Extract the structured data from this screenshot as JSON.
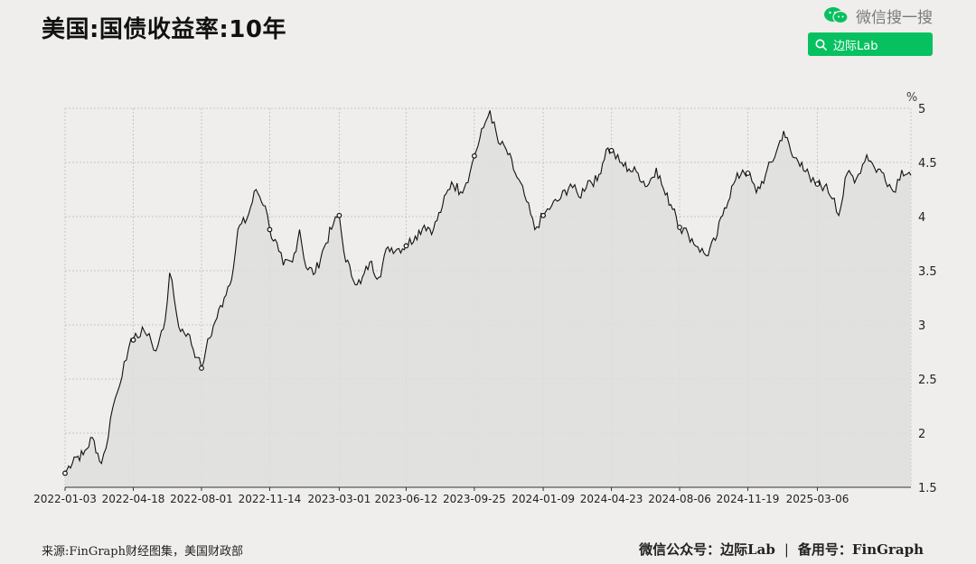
{
  "title": "美国:国债收益率:10年",
  "wechat": {
    "search_text": "微信搜一搜",
    "button_label": "边际Lab",
    "brand_color": "#07c160"
  },
  "footer": {
    "source": "来源:FinGraph财经图集，美国财政部",
    "account_label": "微信公众号：边际Lab",
    "separator": "|",
    "backup_label": "备用号：FinGraph"
  },
  "chart_data": {
    "type": "area",
    "title": "美国:国债收益率:10年",
    "ylabel": "%",
    "y_axis_side": "right",
    "ylim": [
      1.5,
      5
    ],
    "yticks": [
      "1.5",
      "2",
      "2.5",
      "3",
      "3.5",
      "4",
      "4.5",
      "5"
    ],
    "xticks": [
      "2022-01-03",
      "2022-04-18",
      "2022-08-01",
      "2022-11-14",
      "2023-03-01",
      "2023-06-12",
      "2023-09-25",
      "2024-01-09",
      "2024-04-23",
      "2024-08-06",
      "2024-11-19",
      "2025-03-06"
    ],
    "grid": true,
    "line_color": "#111111",
    "fill_color": "#dedede",
    "series": [
      {
        "x": [
          "2022-01-03",
          "2022-01-17",
          "2022-01-31",
          "2022-02-14",
          "2022-02-28",
          "2022-03-07",
          "2022-03-14",
          "2022-03-21",
          "2022-03-28",
          "2022-04-04",
          "2022-04-11",
          "2022-04-18",
          "2022-04-25",
          "2022-05-02",
          "2022-05-09",
          "2022-05-16",
          "2022-05-23",
          "2022-06-06",
          "2022-06-13",
          "2022-06-20",
          "2022-06-27",
          "2022-07-11",
          "2022-07-25",
          "2022-08-01",
          "2022-08-08",
          "2022-08-22",
          "2022-09-05",
          "2022-09-19",
          "2022-09-26",
          "2022-10-10",
          "2022-10-24",
          "2022-11-07",
          "2022-11-14",
          "2022-11-28",
          "2022-12-05",
          "2022-12-19",
          "2022-12-30",
          "2023-01-09",
          "2023-01-23",
          "2023-02-06",
          "2023-02-20",
          "2023-03-01",
          "2023-03-08",
          "2023-03-20",
          "2023-04-03",
          "2023-04-17",
          "2023-05-01",
          "2023-05-15",
          "2023-05-29",
          "2023-06-12",
          "2023-06-26",
          "2023-07-10",
          "2023-07-24",
          "2023-08-07",
          "2023-08-21",
          "2023-09-04",
          "2023-09-18",
          "2023-09-25",
          "2023-10-09",
          "2023-10-19",
          "2023-11-01",
          "2023-11-13",
          "2023-11-27",
          "2023-12-11",
          "2023-12-27",
          "2024-01-09",
          "2024-01-22",
          "2024-02-05",
          "2024-02-20",
          "2024-03-04",
          "2024-03-18",
          "2024-04-01",
          "2024-04-15",
          "2024-04-23",
          "2024-05-06",
          "2024-05-20",
          "2024-06-03",
          "2024-06-17",
          "2024-07-01",
          "2024-07-15",
          "2024-07-29",
          "2024-08-06",
          "2024-08-19",
          "2024-09-03",
          "2024-09-16",
          "2024-09-30",
          "2024-10-14",
          "2024-10-28",
          "2024-11-11",
          "2024-11-19",
          "2024-12-02",
          "2024-12-16",
          "2025-01-02",
          "2025-01-13",
          "2025-01-27",
          "2025-02-10",
          "2025-02-24",
          "2025-03-06",
          "2025-03-17",
          "2025-04-01",
          "2025-04-08",
          "2025-04-21",
          "2025-05-05",
          "2025-05-21",
          "2025-06-02",
          "2025-06-16",
          "2025-07-01",
          "2025-07-14",
          "2025-07-28"
        ],
        "y": [
          1.63,
          1.78,
          1.8,
          1.96,
          1.72,
          1.86,
          2.14,
          2.32,
          2.44,
          2.66,
          2.79,
          2.86,
          2.88,
          2.98,
          2.9,
          2.84,
          2.76,
          3.04,
          3.48,
          3.24,
          2.98,
          2.92,
          2.7,
          2.6,
          2.78,
          3.03,
          3.25,
          3.52,
          3.88,
          3.98,
          4.25,
          4.1,
          3.88,
          3.68,
          3.55,
          3.58,
          3.88,
          3.53,
          3.48,
          3.72,
          3.93,
          4.01,
          3.68,
          3.45,
          3.38,
          3.58,
          3.44,
          3.72,
          3.7,
          3.73,
          3.82,
          3.92,
          3.88,
          4.1,
          4.32,
          4.23,
          4.4,
          4.56,
          4.82,
          4.98,
          4.68,
          4.62,
          4.4,
          4.2,
          3.88,
          4.01,
          4.1,
          4.17,
          4.3,
          4.18,
          4.33,
          4.33,
          4.62,
          4.61,
          4.5,
          4.44,
          4.4,
          4.28,
          4.45,
          4.2,
          4.07,
          3.9,
          3.84,
          3.72,
          3.64,
          3.78,
          4.08,
          4.3,
          4.43,
          4.4,
          4.22,
          4.38,
          4.6,
          4.79,
          4.55,
          4.5,
          4.32,
          4.3,
          4.28,
          4.17,
          4.01,
          4.4,
          4.35,
          4.57,
          4.45,
          4.4,
          4.23,
          4.43,
          4.38
        ]
      }
    ],
    "markers": [
      {
        "x": "2022-01-03",
        "y": 1.63
      },
      {
        "x": "2022-04-18",
        "y": 2.86
      },
      {
        "x": "2022-08-01",
        "y": 2.6
      },
      {
        "x": "2022-11-14",
        "y": 3.88
      },
      {
        "x": "2023-03-01",
        "y": 4.01
      },
      {
        "x": "2023-06-12",
        "y": 3.73
      },
      {
        "x": "2023-09-25",
        "y": 4.56
      },
      {
        "x": "2024-01-09",
        "y": 4.01
      },
      {
        "x": "2024-04-23",
        "y": 4.61
      },
      {
        "x": "2024-08-06",
        "y": 3.9
      },
      {
        "x": "2024-11-19",
        "y": 4.4
      },
      {
        "x": "2025-03-06",
        "y": 4.3
      }
    ]
  }
}
